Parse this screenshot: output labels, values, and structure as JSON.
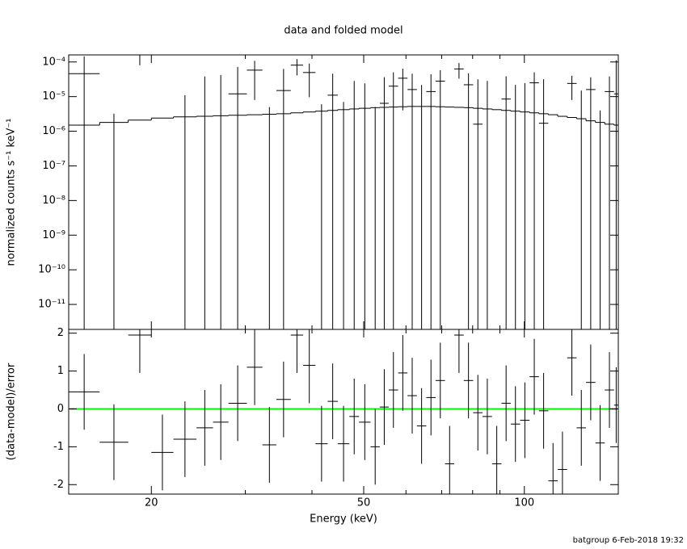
{
  "chart_data": [
    {
      "type": "errorbar",
      "title": "data and folded model",
      "ylabel": "normalized counts s⁻¹ keV⁻¹",
      "log_y": true,
      "ylim": [
        1.9e-12,
        0.00016
      ],
      "yticks": [
        {
          "value": 1e-11,
          "label": "10⁻¹¹"
        },
        {
          "value": 1e-10,
          "label": "10⁻¹⁰"
        },
        {
          "value": 1e-09,
          "label": "10⁻⁹"
        },
        {
          "value": 1e-08,
          "label": "10⁻⁸"
        },
        {
          "value": 1e-07,
          "label": "10⁻⁷"
        },
        {
          "value": 1e-06,
          "label": "10⁻⁶"
        },
        {
          "value": 1e-05,
          "label": "10⁻⁵"
        },
        {
          "value": 0.0001,
          "label": "10⁻⁴"
        }
      ],
      "color": "#000000",
      "model_color": "#000000",
      "bin_edges": [
        14.0,
        16.0,
        18.1,
        20.0,
        22.0,
        24.3,
        26.1,
        27.9,
        30.2,
        32.3,
        34.3,
        36.5,
        38.5,
        40.6,
        42.8,
        44.7,
        47.0,
        49.0,
        51.5,
        53.6,
        55.7,
        58.0,
        60.4,
        62.9,
        65.5,
        68.2,
        71.0,
        73.9,
        77.0,
        80.2,
        83.5,
        87.0,
        90.6,
        94.3,
        98.2,
        102.3,
        106.5,
        110.9,
        115.5,
        120.3,
        125.3,
        130.5,
        135.9,
        141.5,
        147.3,
        150.0
      ],
      "values": [
        4.6e-05,
        -8.8e-06,
        0.00016,
        -2.1e-05,
        -2.9e-05,
        -3.2e-05,
        -1.8e-05,
        1.2e-05,
        5.8e-05,
        -2.5e-05,
        1.5e-05,
        8.1e-05,
        4.96e-05,
        -2.4e-05,
        1.1e-05,
        -2.3e-05,
        -1.6e-06,
        -5.9e-06,
        -2.5e-05,
        6.4e-06,
        2e-05,
        3.4e-05,
        1.6e-05,
        -8.3e-06,
        1.4e-05,
        2.8e-05,
        -3.8e-05,
        6.3e-05,
        2.2e-05,
        1.6e-06,
        -1.6e-06,
        -3.9e-05,
        8.5e-06,
        -8.2e-06,
        -5.4e-06,
        2.5e-05,
        1.7e-06,
        -4.45e-05,
        -2.9e-05,
        2.4e-05,
        -1e-05,
        1.6e-05,
        -1.6e-05,
        1.4e-05,
        1.2e-05
      ],
      "errors": [
        0.0001,
        1.2e-05,
        8e-05,
        2e-05,
        4e-05,
        7e-05,
        6e-05,
        6e-05,
        5e-05,
        3e-05,
        4.8e-05,
        4e-05,
        4e-05,
        3e-05,
        3.5e-05,
        3e-05,
        3e-05,
        3e-05,
        3e-05,
        3e-05,
        3e-05,
        3e-05,
        3e-05,
        3e-05,
        3e-05,
        3e-05,
        3e-05,
        3e-05,
        2.5e-05,
        3e-05,
        3e-05,
        3e-05,
        3e-05,
        3e-05,
        3e-05,
        2.5e-05,
        3e-05,
        2.5e-05,
        2e-05,
        1.6e-05,
        2.5e-05,
        2e-05,
        2e-05,
        2.4e-05,
        0.0001
      ],
      "model": [
        1.5e-06,
        1.8e-06,
        2.1e-06,
        2.4e-06,
        2.6e-06,
        2.7e-06,
        2.8e-06,
        2.9e-06,
        3e-06,
        3.1e-06,
        3.2e-06,
        3.4e-06,
        3.6e-06,
        3.8e-06,
        4e-06,
        4.2e-06,
        4.4e-06,
        4.6e-06,
        4.8e-06,
        4.9e-06,
        5e-06,
        5.1e-06,
        5.2e-06,
        5.2e-06,
        5.2e-06,
        5.1e-06,
        5e-06,
        4.9e-06,
        4.8e-06,
        4.6e-06,
        4.4e-06,
        4.2e-06,
        4e-06,
        3.8e-06,
        3.6e-06,
        3.4e-06,
        3.2e-06,
        3e-06,
        2.7e-06,
        2.5e-06,
        2.3e-06,
        2e-06,
        1.8e-06,
        1.6e-06,
        1.5e-06
      ]
    },
    {
      "type": "errorbar",
      "ylabel": "(data-model)/error",
      "xlabel": "Energy (keV)",
      "log_x": true,
      "xlim": [
        14,
        150
      ],
      "xticks": [
        20,
        50,
        100
      ],
      "xminorticks": [
        30,
        40,
        60,
        70,
        80,
        90
      ],
      "ylim": [
        -2.25,
        2.1
      ],
      "yticks": [
        -2,
        -1,
        0,
        1,
        2
      ],
      "reference_line": 0,
      "reference_color": "#00ff00",
      "color": "#000000",
      "values": [
        0.45,
        -0.88,
        1.95,
        -1.15,
        -0.8,
        -0.5,
        -0.35,
        0.15,
        1.1,
        -0.95,
        0.25,
        1.95,
        1.15,
        -0.92,
        0.2,
        -0.92,
        -0.2,
        -0.35,
        -1.0,
        0.05,
        0.5,
        0.95,
        0.35,
        -0.45,
        0.3,
        0.75,
        -1.45,
        1.95,
        0.75,
        -0.1,
        -0.2,
        -1.45,
        0.15,
        -0.4,
        -0.3,
        0.85,
        -0.05,
        -1.9,
        -1.6,
        1.35,
        -0.5,
        0.7,
        -0.9,
        0.5,
        0.1
      ],
      "errors": [
        1,
        1,
        1,
        1,
        1,
        1,
        1,
        1,
        1,
        1,
        1,
        1,
        1,
        1,
        1,
        1,
        1,
        1,
        1,
        1,
        1,
        1,
        1,
        1,
        1,
        1,
        1,
        1,
        1,
        1,
        1,
        1,
        1,
        1,
        1,
        1,
        1,
        1,
        1,
        1,
        1,
        1,
        1,
        1,
        1
      ]
    }
  ],
  "footer": "batgroup  6-Feb-2018 19:32"
}
